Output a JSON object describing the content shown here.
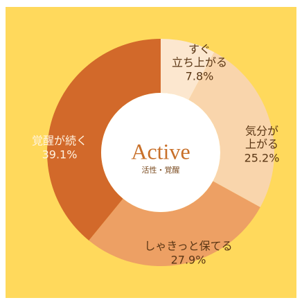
{
  "chart_data": {
    "type": "donut",
    "center_title": "Active",
    "center_subtitle": "活性・覚醒",
    "categories": [
      [
        "すぐ",
        "立ち上がる"
      ],
      [
        "気分が",
        "上がる"
      ],
      [
        "しゃきっと保てる"
      ],
      [
        "覚醒が続く"
      ]
    ],
    "values": [
      7.8,
      25.2,
      27.9,
      39.1
    ],
    "value_labels": [
      "7.8%",
      "25.2%",
      "27.9%",
      "39.1%"
    ],
    "colors": [
      "#FCE7CF",
      "#F9D5AC",
      "#EDA064",
      "#D2692A"
    ],
    "background": "#FFD95C"
  }
}
